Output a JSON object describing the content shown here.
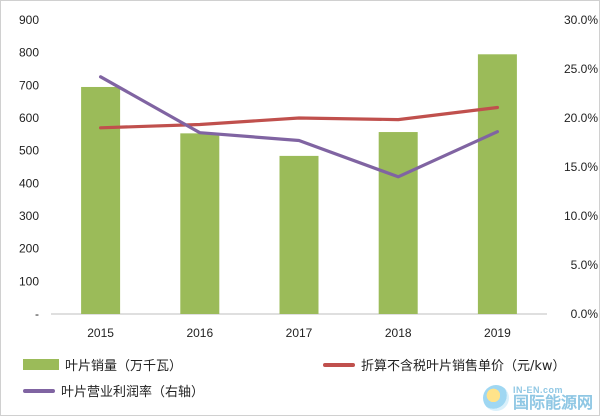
{
  "chart_data": {
    "type": "bar",
    "categories": [
      "2015",
      "2016",
      "2017",
      "2018",
      "2019"
    ],
    "series": [
      {
        "name": "叶片销量（万千瓦）",
        "type": "bar",
        "axis": "left",
        "values": [
          695,
          553,
          484,
          557,
          795
        ],
        "color": "#9bbb59"
      },
      {
        "name": "折算不含税叶片销售单价（元/kw）",
        "type": "line",
        "axis": "left",
        "values": [
          570,
          580,
          600,
          595,
          632
        ],
        "color": "#c0504d"
      },
      {
        "name": "叶片营业利润率（右轴）",
        "type": "line",
        "axis": "right",
        "values": [
          24.2,
          18.5,
          17.7,
          14.0,
          18.6
        ],
        "color": "#8064a2"
      }
    ],
    "ylim": [
      0,
      900
    ],
    "y2lim": [
      0,
      30
    ],
    "yticks": [
      "-",
      "100",
      "200",
      "300",
      "400",
      "500",
      "600",
      "700",
      "800",
      "900"
    ],
    "y2ticks": [
      "0.0%",
      "5.0%",
      "10.0%",
      "15.0%",
      "20.0%",
      "25.0%",
      "30.0%"
    ],
    "grid": false,
    "legend_position": "bottom"
  },
  "legend": {
    "bar_label": "叶片销量（万千瓦）",
    "price_label": "折算不含税叶片销售单价（元/kw）",
    "margin_label": "叶片营业利润率（右轴）"
  },
  "watermark": {
    "top": "IN-EN.com",
    "bottom": "国际能源网"
  }
}
